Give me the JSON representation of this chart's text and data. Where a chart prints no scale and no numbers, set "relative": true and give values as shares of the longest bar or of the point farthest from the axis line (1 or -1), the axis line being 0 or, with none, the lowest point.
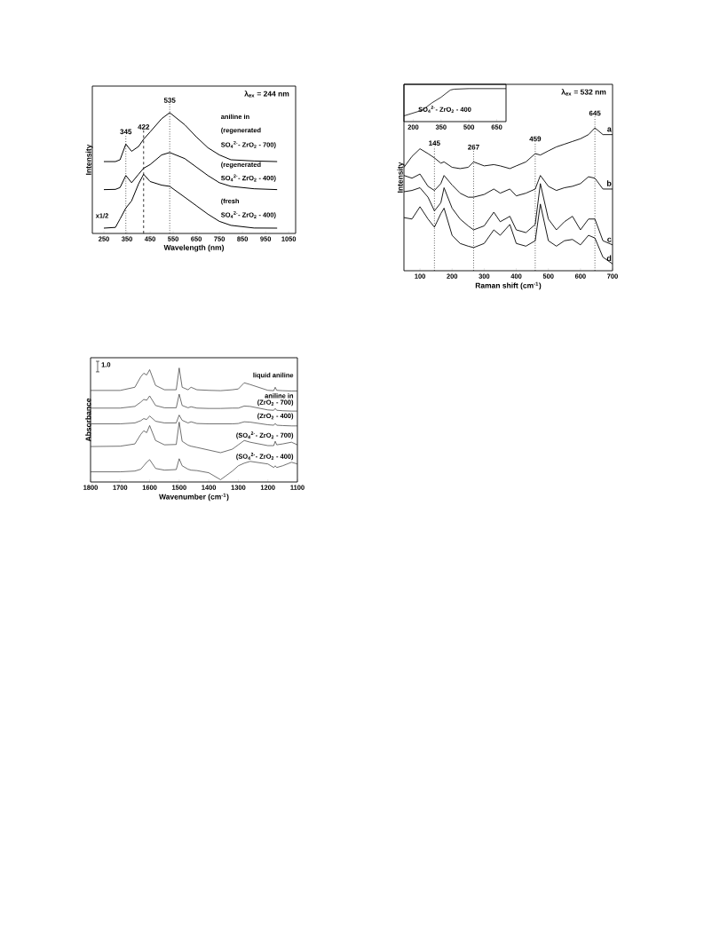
{
  "chart_data": [
    {
      "type": "line",
      "relative": true,
      "xlabel": "Wavelength (nm)",
      "ylabel": "Intensity",
      "xlim": [
        200,
        1080
      ],
      "xticks": [
        250,
        350,
        450,
        550,
        650,
        750,
        850,
        950,
        1050
      ],
      "x": [
        250,
        300,
        320,
        345,
        370,
        400,
        422,
        450,
        500,
        535,
        600,
        650,
        700,
        750,
        800,
        900,
        1000
      ],
      "series": [
        {
          "color": "#000000",
          "values": [
            0.595,
            0.595,
            0.61,
            0.74,
            0.68,
            0.72,
            0.78,
            0.84,
            0.95,
            1.0,
            0.9,
            0.8,
            0.71,
            0.65,
            0.61,
            0.6,
            0.595
          ]
        },
        {
          "color": "#000000",
          "values": [
            0.363,
            0.365,
            0.38,
            0.48,
            0.42,
            0.49,
            0.54,
            0.57,
            0.65,
            0.67,
            0.62,
            0.55,
            0.48,
            0.42,
            0.39,
            0.37,
            0.363
          ]
        },
        {
          "color": "#000000",
          "values": [
            0.044,
            0.05,
            0.12,
            0.21,
            0.27,
            0.41,
            0.49,
            0.43,
            0.4,
            0.39,
            0.3,
            0.23,
            0.16,
            0.1,
            0.067,
            0.045,
            0.044
          ]
        }
      ],
      "ref_lines": [
        {
          "axis": "x",
          "value": 345,
          "label": "345",
          "line_style": "dotted"
        },
        {
          "axis": "x",
          "value": 422,
          "label": "422",
          "line_style": "dashed"
        },
        {
          "axis": "x",
          "value": 535,
          "label": "535",
          "line_style": "dotted"
        }
      ],
      "annotations": [
        "λ$_{ex}$ = 244 nm",
        "aniline in",
        "(regenerated",
        "SO$_{4}$$^{2-}$- ZrO$_{2}$ - 700)",
        "(regenerated",
        "SO$_{4}$$^{2-}$- ZrO$_{2}$ - 400)",
        "(fresh",
        "SO$_{4}$$^{2-}$- ZrO$_{2}$ - 400)",
        "x1/2"
      ]
    },
    {
      "type": "line",
      "relative": true,
      "xlim": [
        150,
        700
      ],
      "xticks": [
        200,
        350,
        500,
        650
      ],
      "x": [
        150,
        250,
        300,
        350,
        400,
        420,
        500,
        700
      ],
      "series": [
        {
          "color": "#000000",
          "values": [
            0.174,
            0.348,
            0.565,
            0.739,
            0.957,
            0.983,
            1,
            1
          ]
        }
      ],
      "annotations": [
        "SO$_{4}$$^{2-}$- ZrO$_{2}$ - 400"
      ]
    },
    {
      "type": "line",
      "relative": true,
      "xlabel": "Raman shift (cm$^{-1}$)",
      "ylabel": "Intensity",
      "xlim": [
        50,
        700
      ],
      "xticks": [
        100,
        200,
        300,
        400,
        500,
        600,
        700
      ],
      "x": [
        50,
        75,
        100,
        125,
        145,
        165,
        175,
        200,
        225,
        250,
        267,
        300,
        330,
        350,
        380,
        400,
        430,
        459,
        475,
        500,
        525,
        550,
        575,
        600,
        625,
        645,
        670,
        700
      ],
      "series": [
        {
          "name": "a",
          "color": "#000000",
          "values": [
            0.724,
            0.8,
            0.854,
            0.82,
            0.79,
            0.753,
            0.762,
            0.724,
            0.715,
            0.724,
            0.762,
            0.734,
            0.743,
            0.734,
            0.715,
            0.734,
            0.762,
            0.82,
            0.81,
            0.839,
            0.867,
            0.886,
            0.905,
            0.924,
            0.953,
            1.0,
            0.953,
            0.953
          ]
        },
        {
          "name": "b",
          "color": "#000000",
          "values": [
            0.667,
            0.648,
            0.677,
            0.591,
            0.562,
            0.61,
            0.667,
            0.6,
            0.543,
            0.515,
            0.515,
            0.534,
            0.572,
            0.543,
            0.572,
            0.524,
            0.543,
            0.572,
            0.667,
            0.591,
            0.562,
            0.581,
            0.591,
            0.61,
            0.658,
            0.648,
            0.572,
            0.572
          ]
        },
        {
          "name": "c",
          "color": "#000000",
          "values": [
            0.553,
            0.562,
            0.581,
            0.515,
            0.419,
            0.476,
            0.581,
            0.438,
            0.362,
            0.314,
            0.286,
            0.314,
            0.41,
            0.343,
            0.381,
            0.286,
            0.267,
            0.324,
            0.61,
            0.362,
            0.286,
            0.343,
            0.381,
            0.286,
            0.362,
            0.362,
            0.21,
            0.181
          ]
        },
        {
          "name": "d",
          "color": "#000000",
          "values": [
            0.372,
            0.362,
            0.448,
            0.362,
            0.305,
            0.4,
            0.438,
            0.248,
            0.191,
            0.172,
            0.162,
            0.191,
            0.286,
            0.248,
            0.324,
            0.191,
            0.172,
            0.21,
            0.467,
            0.21,
            0.172,
            0.21,
            0.219,
            0.181,
            0.248,
            0.229,
            0.095,
            0.048
          ]
        }
      ],
      "ref_lines": [
        {
          "axis": "x",
          "value": 145,
          "label": "145",
          "line_style": "dotted"
        },
        {
          "axis": "x",
          "value": 267,
          "label": "267",
          "line_style": "dotted"
        },
        {
          "axis": "x",
          "value": 459,
          "label": "459",
          "line_style": "dotted"
        },
        {
          "axis": "x",
          "value": 645,
          "label": "645",
          "line_style": "dotted"
        }
      ],
      "annotations": [
        "λ$_{ex}$ = 532 nm"
      ]
    },
    {
      "type": "line",
      "relative": true,
      "xlabel": "Wavenumber (cm$^{-1}$)",
      "ylabel": "Absorbance",
      "xlim": [
        1800,
        1100
      ],
      "xticks": [
        1800,
        1700,
        1600,
        1500,
        1400,
        1300,
        1200,
        1100
      ],
      "x": [
        1800,
        1700,
        1650,
        1630,
        1620,
        1610,
        1600,
        1580,
        1550,
        1510,
        1500,
        1490,
        1470,
        1460,
        1440,
        1400,
        1360,
        1320,
        1300,
        1280,
        1260,
        1200,
        1180,
        1175,
        1170,
        1150,
        1120,
        1100
      ],
      "series": [
        {
          "color": "#333333",
          "values": [
            0.803,
            0.803,
            0.831,
            0.923,
            0.954,
            0.939,
            0.985,
            0.847,
            0.809,
            0.809,
            1.0,
            0.831,
            0.809,
            0.831,
            0.809,
            0.804,
            0.801,
            0.809,
            0.816,
            0.87,
            0.855,
            0.804,
            0.801,
            0.831,
            0.804,
            0.801,
            0.798,
            0.798
          ]
        },
        {
          "color": "#333333",
          "values": [
            0.648,
            0.648,
            0.663,
            0.701,
            0.724,
            0.717,
            0.755,
            0.671,
            0.651,
            0.651,
            0.77,
            0.671,
            0.651,
            0.66,
            0.648,
            0.645,
            0.645,
            0.648,
            0.648,
            0.666,
            0.663,
            0.632,
            0.629,
            0.645,
            0.629,
            0.625,
            0.622,
            0.622
          ]
        },
        {
          "color": "#333333",
          "values": [
            0.51,
            0.51,
            0.518,
            0.538,
            0.556,
            0.548,
            0.579,
            0.533,
            0.518,
            0.518,
            0.587,
            0.541,
            0.518,
            0.528,
            0.513,
            0.51,
            0.51,
            0.51,
            0.513,
            0.528,
            0.525,
            0.502,
            0.498,
            0.513,
            0.498,
            0.495,
            0.492,
            0.492
          ]
        },
        {
          "color": "#333333",
          "values": [
            0.311,
            0.314,
            0.334,
            0.418,
            0.449,
            0.433,
            0.495,
            0.364,
            0.326,
            0.329,
            0.525,
            0.357,
            0.323,
            0.314,
            0.303,
            0.28,
            0.257,
            0.288,
            0.326,
            0.364,
            0.349,
            0.319,
            0.319,
            0.357,
            0.326,
            0.334,
            0.349,
            0.326
          ]
        },
        {
          "color": "#333333",
          "values": [
            0.089,
            0.089,
            0.096,
            0.112,
            0.142,
            0.173,
            0.196,
            0.119,
            0.104,
            0.109,
            0.204,
            0.142,
            0.112,
            0.104,
            0.1,
            0.081,
            0.02,
            0.096,
            0.142,
            0.165,
            0.181,
            0.158,
            0.127,
            0.142,
            0.127,
            0.142,
            0.173,
            0.158
          ]
        }
      ],
      "annotations": [
        "1.0",
        "liquid aniline",
        "aniline in",
        "(ZrO$_{2}$ - 700)",
        "(ZrO$_{2}$ - 400)",
        "(SO$_{4}$$^{2-}$- ZrO$_{2}$ - 700)",
        "(SO$_{4}$$^{2-}$- ZrO$_{2}$ - 400)"
      ]
    }
  ]
}
